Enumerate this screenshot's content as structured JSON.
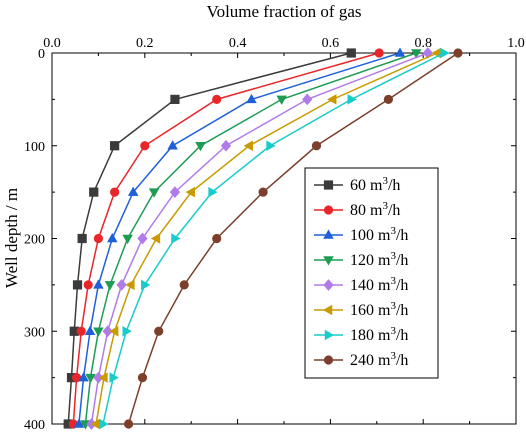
{
  "chart_data": {
    "type": "line",
    "xlabel": "Volume fraction of gas",
    "ylabel": "Well depth / m",
    "x_axis_position": "top",
    "y_axis_inverted": true,
    "xlim": [
      0,
      1.0
    ],
    "ylim": [
      0,
      400
    ],
    "x_ticks": [
      "0.0",
      "0.2",
      "0.4",
      "0.6",
      "0.8",
      "1.0"
    ],
    "y_ticks": [
      "0",
      "100",
      "200",
      "300",
      "400"
    ],
    "grid": false,
    "legend_position": "right-center",
    "depths": [
      0,
      50,
      100,
      150,
      200,
      250,
      300,
      350,
      400
    ],
    "series": [
      {
        "name": "60 m",
        "sup": "3",
        "suffix": "/h",
        "color": "#3b3b3b",
        "marker": "square",
        "values": [
          0.645,
          0.265,
          0.135,
          0.09,
          0.065,
          0.055,
          0.048,
          0.042,
          0.035
        ]
      },
      {
        "name": "80 m",
        "sup": "3",
        "suffix": "/h",
        "color": "#e8262a",
        "marker": "circle",
        "values": [
          0.705,
          0.355,
          0.2,
          0.135,
          0.1,
          0.078,
          0.063,
          0.053,
          0.046
        ]
      },
      {
        "name": "100 m",
        "sup": "3",
        "suffix": "/h",
        "color": "#1f5fd8",
        "marker": "triangle-up",
        "values": [
          0.75,
          0.43,
          0.26,
          0.175,
          0.13,
          0.1,
          0.082,
          0.068,
          0.058
        ]
      },
      {
        "name": "120 m",
        "sup": "3",
        "suffix": "/h",
        "color": "#1e9c54",
        "marker": "triangle-down",
        "values": [
          0.785,
          0.495,
          0.32,
          0.22,
          0.163,
          0.125,
          0.1,
          0.083,
          0.072
        ]
      },
      {
        "name": "140 m",
        "sup": "3",
        "suffix": "/h",
        "color": "#b07be8",
        "marker": "diamond",
        "values": [
          0.81,
          0.55,
          0.375,
          0.265,
          0.195,
          0.15,
          0.12,
          0.1,
          0.085
        ]
      },
      {
        "name": "160 m",
        "sup": "3",
        "suffix": "/h",
        "color": "#c99a00",
        "marker": "triangle-left",
        "values": [
          0.83,
          0.605,
          0.425,
          0.3,
          0.225,
          0.17,
          0.135,
          0.112,
          0.095
        ]
      },
      {
        "name": "180 m",
        "sup": "3",
        "suffix": "/h",
        "color": "#19cbcb",
        "marker": "triangle-right",
        "values": [
          0.845,
          0.645,
          0.47,
          0.345,
          0.265,
          0.2,
          0.16,
          0.132,
          0.11
        ]
      },
      {
        "name": "240 m",
        "sup": "3",
        "suffix": "/h",
        "color": "#7b3f2b",
        "marker": "circle",
        "values": [
          0.875,
          0.725,
          0.57,
          0.455,
          0.355,
          0.285,
          0.23,
          0.195,
          0.165
        ]
      }
    ]
  }
}
